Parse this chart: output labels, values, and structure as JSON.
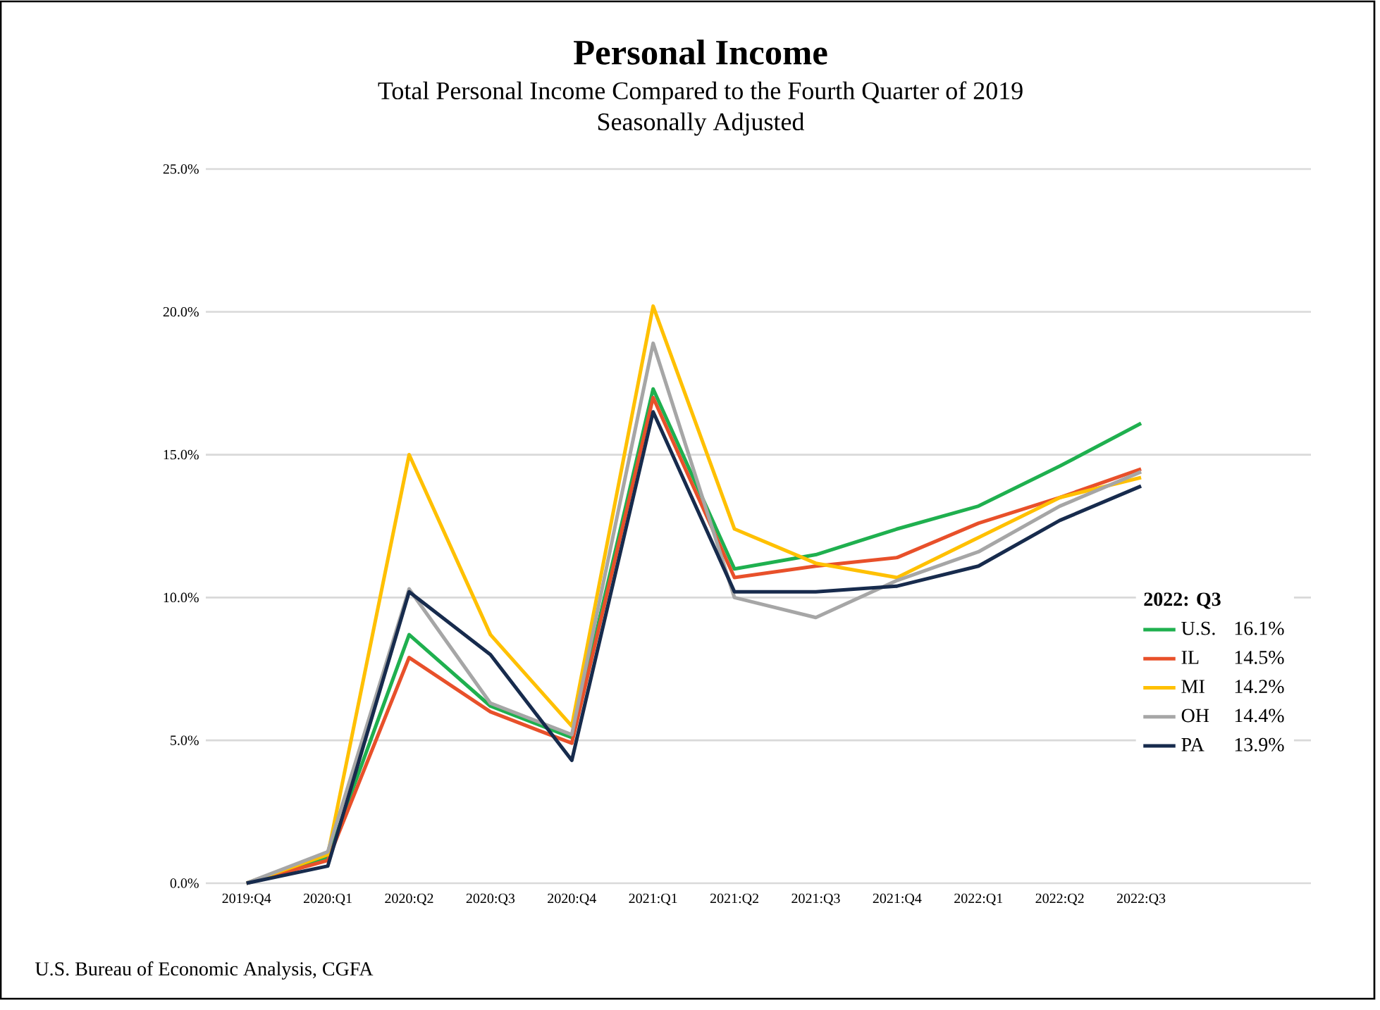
{
  "chart_data": {
    "type": "line",
    "title": "Personal Income",
    "subtitle": "Total Personal Income Compared to the Fourth Quarter of 2019\nSeasonally Adjusted",
    "legend_title": "2022: Q3",
    "categories": [
      "2019:Q4",
      "2020:Q1",
      "2020:Q2",
      "2020:Q3",
      "2020:Q4",
      "2021:Q1",
      "2021:Q2",
      "2021:Q3",
      "2021:Q4",
      "2022:Q1",
      "2022:Q2",
      "2022:Q3"
    ],
    "series": [
      {
        "name": "U.S.",
        "color": "#1fb04f",
        "values": [
          0,
          0.9,
          8.7,
          6.2,
          5.1,
          17.3,
          11.0,
          11.5,
          12.4,
          13.2,
          14.6,
          16.1
        ]
      },
      {
        "name": "IL",
        "color": "#e8502a",
        "values": [
          0,
          0.8,
          7.9,
          6.0,
          4.9,
          17.0,
          10.7,
          11.1,
          11.4,
          12.6,
          13.5,
          14.5
        ]
      },
      {
        "name": "MI",
        "color": "#ffc000",
        "values": [
          0,
          1.0,
          15.0,
          8.7,
          5.5,
          20.2,
          12.4,
          11.2,
          10.7,
          12.1,
          13.5,
          14.2
        ]
      },
      {
        "name": "OH",
        "color": "#a6a6a6",
        "values": [
          0,
          1.1,
          10.3,
          6.3,
          5.2,
          18.9,
          10.0,
          9.3,
          10.6,
          11.6,
          13.2,
          14.4
        ]
      },
      {
        "name": "PA",
        "color": "#172b4d",
        "values": [
          0,
          0.6,
          10.2,
          8.0,
          4.3,
          16.5,
          10.2,
          10.2,
          10.4,
          11.1,
          12.7,
          13.9
        ]
      }
    ],
    "ylim": [
      0,
      25
    ],
    "yticks": [
      {
        "value": 0,
        "label": "0.0%"
      },
      {
        "value": 5,
        "label": "5.0%"
      },
      {
        "value": 10,
        "label": "10.0%"
      },
      {
        "value": 15,
        "label": "15.0%"
      },
      {
        "value": 20,
        "label": "20.0%"
      },
      {
        "value": 25,
        "label": "25.0%"
      }
    ],
    "grid": "y",
    "legend": "right",
    "marker": "none",
    "line_style": "solid",
    "annotations": [
      "16.1%",
      "14.5%",
      "14.2%",
      "14.4%",
      "13.9%",
      "U.S. Bureau of Economic Analysis, CGFA"
    ]
  }
}
